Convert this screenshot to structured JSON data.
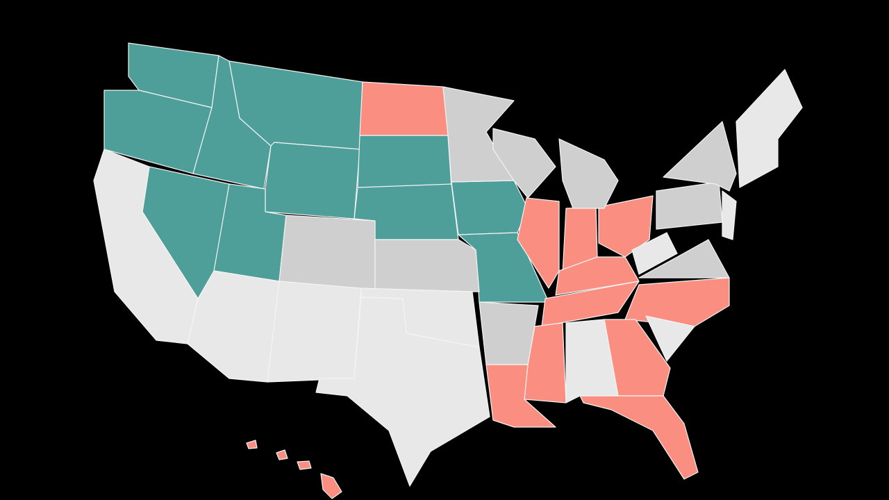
{
  "map": {
    "fills": [
      "#4e9e99",
      "#fa8e80",
      "#cfcfcf",
      "#e8e8e8"
    ]
  }
}
